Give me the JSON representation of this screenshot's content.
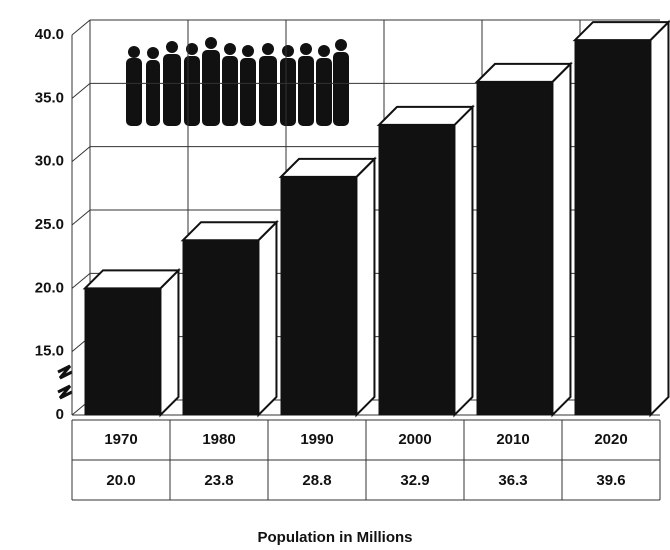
{
  "chart_data": {
    "type": "bar",
    "title": "Population in Millions",
    "categories": [
      "1970",
      "1980",
      "1990",
      "2000",
      "2010",
      "2020"
    ],
    "values": [
      20.0,
      23.8,
      28.8,
      32.9,
      36.3,
      39.6
    ],
    "value_labels": [
      "20.0",
      "23.8",
      "28.8",
      "32.9",
      "36.3",
      "39.6"
    ],
    "color": "#111111",
    "ylim": [
      0,
      40
    ],
    "yticks": [
      0,
      {
        "value": 15,
        "label": "15.0"
      },
      {
        "value": 20,
        "label": "20.0"
      },
      {
        "value": 25,
        "label": "25.0"
      },
      {
        "value": 30,
        "label": "30.0"
      },
      {
        "value": 35,
        "label": "35.0"
      },
      {
        "value": 40,
        "label": "40.0"
      }
    ],
    "grid": true
  }
}
